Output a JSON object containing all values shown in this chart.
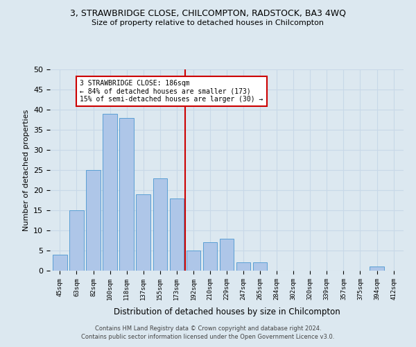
{
  "title1": "3, STRAWBRIDGE CLOSE, CHILCOMPTON, RADSTOCK, BA3 4WQ",
  "title2": "Size of property relative to detached houses in Chilcompton",
  "xlabel": "Distribution of detached houses by size in Chilcompton",
  "ylabel": "Number of detached properties",
  "bar_labels": [
    "45sqm",
    "63sqm",
    "82sqm",
    "100sqm",
    "118sqm",
    "137sqm",
    "155sqm",
    "173sqm",
    "192sqm",
    "210sqm",
    "229sqm",
    "247sqm",
    "265sqm",
    "284sqm",
    "302sqm",
    "320sqm",
    "339sqm",
    "357sqm",
    "375sqm",
    "394sqm",
    "412sqm"
  ],
  "bar_values": [
    4,
    15,
    25,
    39,
    38,
    19,
    23,
    18,
    5,
    7,
    8,
    2,
    2,
    0,
    0,
    0,
    0,
    0,
    0,
    1,
    0
  ],
  "bar_color": "#aec6e8",
  "bar_edge_color": "#5a9fd4",
  "vline_color": "#cc0000",
  "vline_x": 7.5,
  "annotation_text": "3 STRAWBRIDGE CLOSE: 186sqm\n← 84% of detached houses are smaller (173)\n15% of semi-detached houses are larger (30) →",
  "annotation_box_color": "#ffffff",
  "annotation_box_edge_color": "#cc0000",
  "ylim": [
    0,
    50
  ],
  "yticks": [
    0,
    5,
    10,
    15,
    20,
    25,
    30,
    35,
    40,
    45,
    50
  ],
  "grid_color": "#c8d8e8",
  "background_color": "#dce8f0",
  "footer_line1": "Contains HM Land Registry data © Crown copyright and database right 2024.",
  "footer_line2": "Contains public sector information licensed under the Open Government Licence v3.0."
}
